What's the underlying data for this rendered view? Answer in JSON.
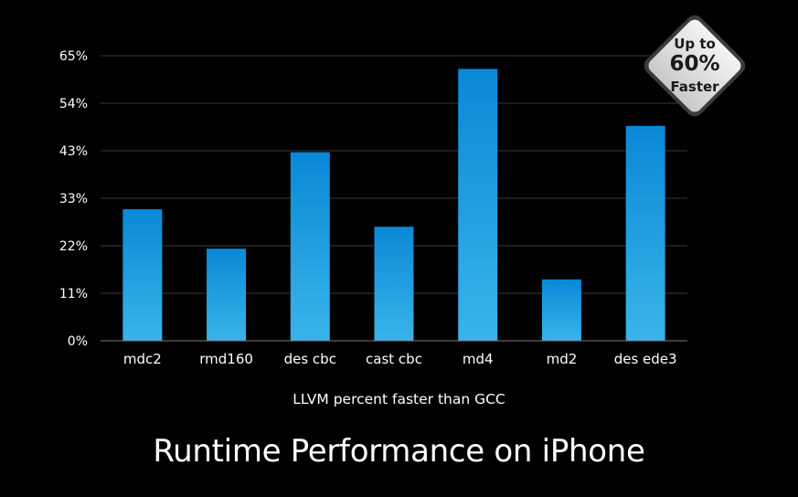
{
  "chart_data": {
    "type": "bar",
    "title": "Runtime Performance on iPhone",
    "xlabel": "LLVM percent faster than GCC",
    "ylabel": "",
    "categories": [
      "mdc2",
      "rmd160",
      "des cbc",
      "cast cbc",
      "md4",
      "md2",
      "des ede3"
    ],
    "values": [
      30,
      21,
      43,
      26,
      62,
      14,
      49
    ],
    "yticks": [
      "0%",
      "11%",
      "22%",
      "33%",
      "43%",
      "54%",
      "65%"
    ],
    "ylim": [
      0,
      65
    ],
    "grid": true,
    "bar_color_top": "#0a88d6",
    "bar_color_bottom": "#39b4ea"
  },
  "badge": {
    "line1": "Up to",
    "line2": "60%",
    "line3": "Faster"
  }
}
